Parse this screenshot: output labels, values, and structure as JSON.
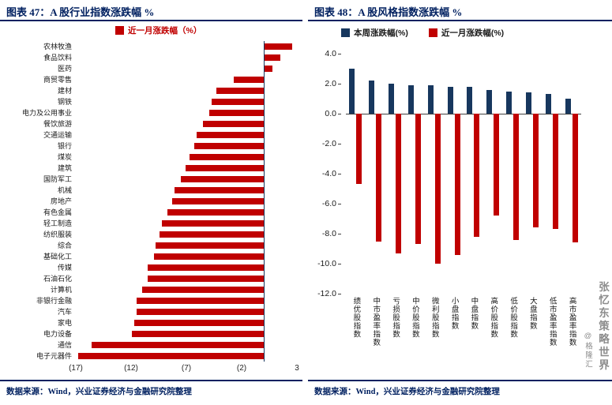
{
  "page": {
    "watermark_main": "张忆东策略世界",
    "watermark_sub": "@格隆汇",
    "source_left": "数据来源：Wind，兴业证券经济与金融研究院整理",
    "source_right": "数据来源：Wind，兴业证券经济与金融研究院整理"
  },
  "colors": {
    "title_navy": "#002060",
    "bar_red": "#c00000",
    "bar_navy": "#17375e",
    "watermark_gray": "#8c8c8c"
  },
  "chart_data": [
    {
      "type": "bar",
      "orientation": "horizontal",
      "title": "图表 47：A 股行业指数涨跌幅 %",
      "legend": [
        {
          "label": "近一月涨跌幅（%）",
          "color": "#c00000"
        }
      ],
      "categories": [
        "农林牧渔",
        "食品饮料",
        "医药",
        "商贸零售",
        "建材",
        "钢铁",
        "电力及公用事业",
        "餐饮旅游",
        "交通运输",
        "银行",
        "煤炭",
        "建筑",
        "国防军工",
        "机械",
        "房地产",
        "有色金属",
        "轻工制造",
        "纺织服装",
        "综合",
        "基础化工",
        "传媒",
        "石油石化",
        "计算机",
        "非银行金融",
        "汽车",
        "家电",
        "电力设备",
        "通信",
        "电子元器件"
      ],
      "values": [
        2.6,
        1.5,
        0.8,
        -2.7,
        -4.3,
        -4.7,
        -4.9,
        -5.5,
        -6.1,
        -6.3,
        -6.7,
        -7.1,
        -7.5,
        -8.1,
        -8.3,
        -8.7,
        -9.2,
        -9.4,
        -9.8,
        -9.9,
        -10.5,
        -10.5,
        -11.0,
        -11.5,
        -11.5,
        -11.7,
        -11.9,
        -15.6,
        -16.8
      ],
      "xlim": [
        -17,
        3
      ],
      "xticks": [
        {
          "label": "(17)",
          "value": -17
        },
        {
          "label": "(12)",
          "value": -12
        },
        {
          "label": "(7)",
          "value": -7
        },
        {
          "label": "(2)",
          "value": -2
        },
        {
          "label": "3",
          "value": 3
        }
      ],
      "bar_color": "#c00000",
      "grid": false,
      "legend_position": "top"
    },
    {
      "type": "bar",
      "orientation": "vertical",
      "title": "图表 48：A 股风格指数涨跌幅 %",
      "categories": [
        "绩优股指数",
        "中市盈率指数",
        "亏损股指数",
        "中价股指数",
        "微利股指数",
        "小盘指数",
        "中盘指数",
        "高价股指数",
        "低价股指数",
        "大盘指数",
        "低市盈率指数",
        "高市盈率指数"
      ],
      "series": [
        {
          "name": "本周涨跌幅(%)",
          "color": "#17375e",
          "values": [
            3.0,
            2.2,
            2.0,
            1.9,
            1.9,
            1.8,
            1.8,
            1.6,
            1.5,
            1.4,
            1.3,
            1.0
          ]
        },
        {
          "name": "近一月涨跌幅(%)",
          "color": "#c00000",
          "values": [
            -4.7,
            -8.5,
            -9.3,
            -8.7,
            -10.0,
            -9.4,
            -8.2,
            -6.8,
            -8.4,
            -7.6,
            -7.7,
            -8.6
          ]
        }
      ],
      "ylim": [
        -12,
        4
      ],
      "yticks": [
        4,
        2,
        0,
        -2,
        -4,
        -6,
        -8,
        -10,
        -12
      ],
      "grid": false,
      "legend_position": "top"
    }
  ]
}
